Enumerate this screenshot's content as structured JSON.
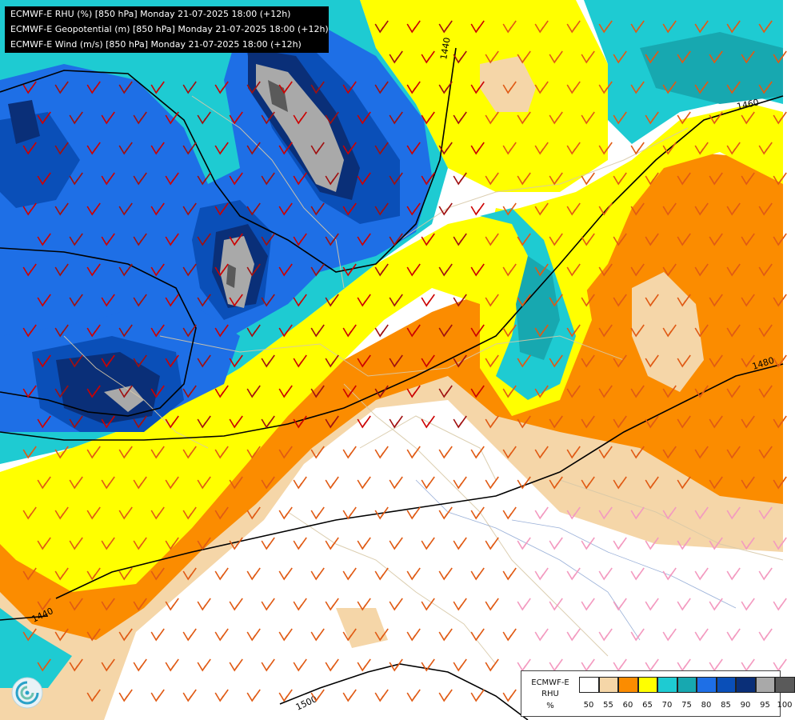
{
  "header": {
    "line1": "ECMWF-E RHU (%) [850 hPa] Monday 21-07-2025 18:00 (+12h)",
    "line2": "ECMWF-E Geopotential (m) [850 hPa] Monday 21-07-2025 18:00 (+12h)",
    "line3": "ECMWF-E Wind (m/s) [850 hPa] Monday 21-07-2025 18:00 (+12h)"
  },
  "contours": {
    "labels": [
      "1440",
      "1460",
      "1480",
      "1440",
      "1500"
    ]
  },
  "legend": {
    "model": "ECMWF-E",
    "variable": "RHU",
    "unit": "%",
    "ticks": [
      "50",
      "55",
      "60",
      "65",
      "70",
      "75",
      "80",
      "85",
      "90",
      "95",
      "100"
    ],
    "colors": [
      "#ffffff",
      "#f5d6a8",
      "#fb8c00",
      "#ffff00",
      "#1ecbd2",
      "#17a8b0",
      "#1e6fe6",
      "#0a4fb8",
      "#0a2f78",
      "#a9a9a9",
      "#5a5a5a"
    ]
  },
  "colors": {
    "white_lt50": "#ffffff",
    "tan_50_55": "#f5d6a8",
    "orange_55_60": "#fb8c00",
    "yellow_60_65": "#ffff00",
    "cyan_65_70": "#1ecbd2",
    "teal_70_75": "#17a8b0",
    "blue_75_80": "#1e6fe6",
    "blue_80_85": "#0a4fb8",
    "navy_85_90": "#0a2f78",
    "gray_90_95": "#a9a9a9",
    "darkgray_95_100": "#5a5a5a"
  },
  "icons": {
    "logo": "swirl-logo-icon"
  }
}
